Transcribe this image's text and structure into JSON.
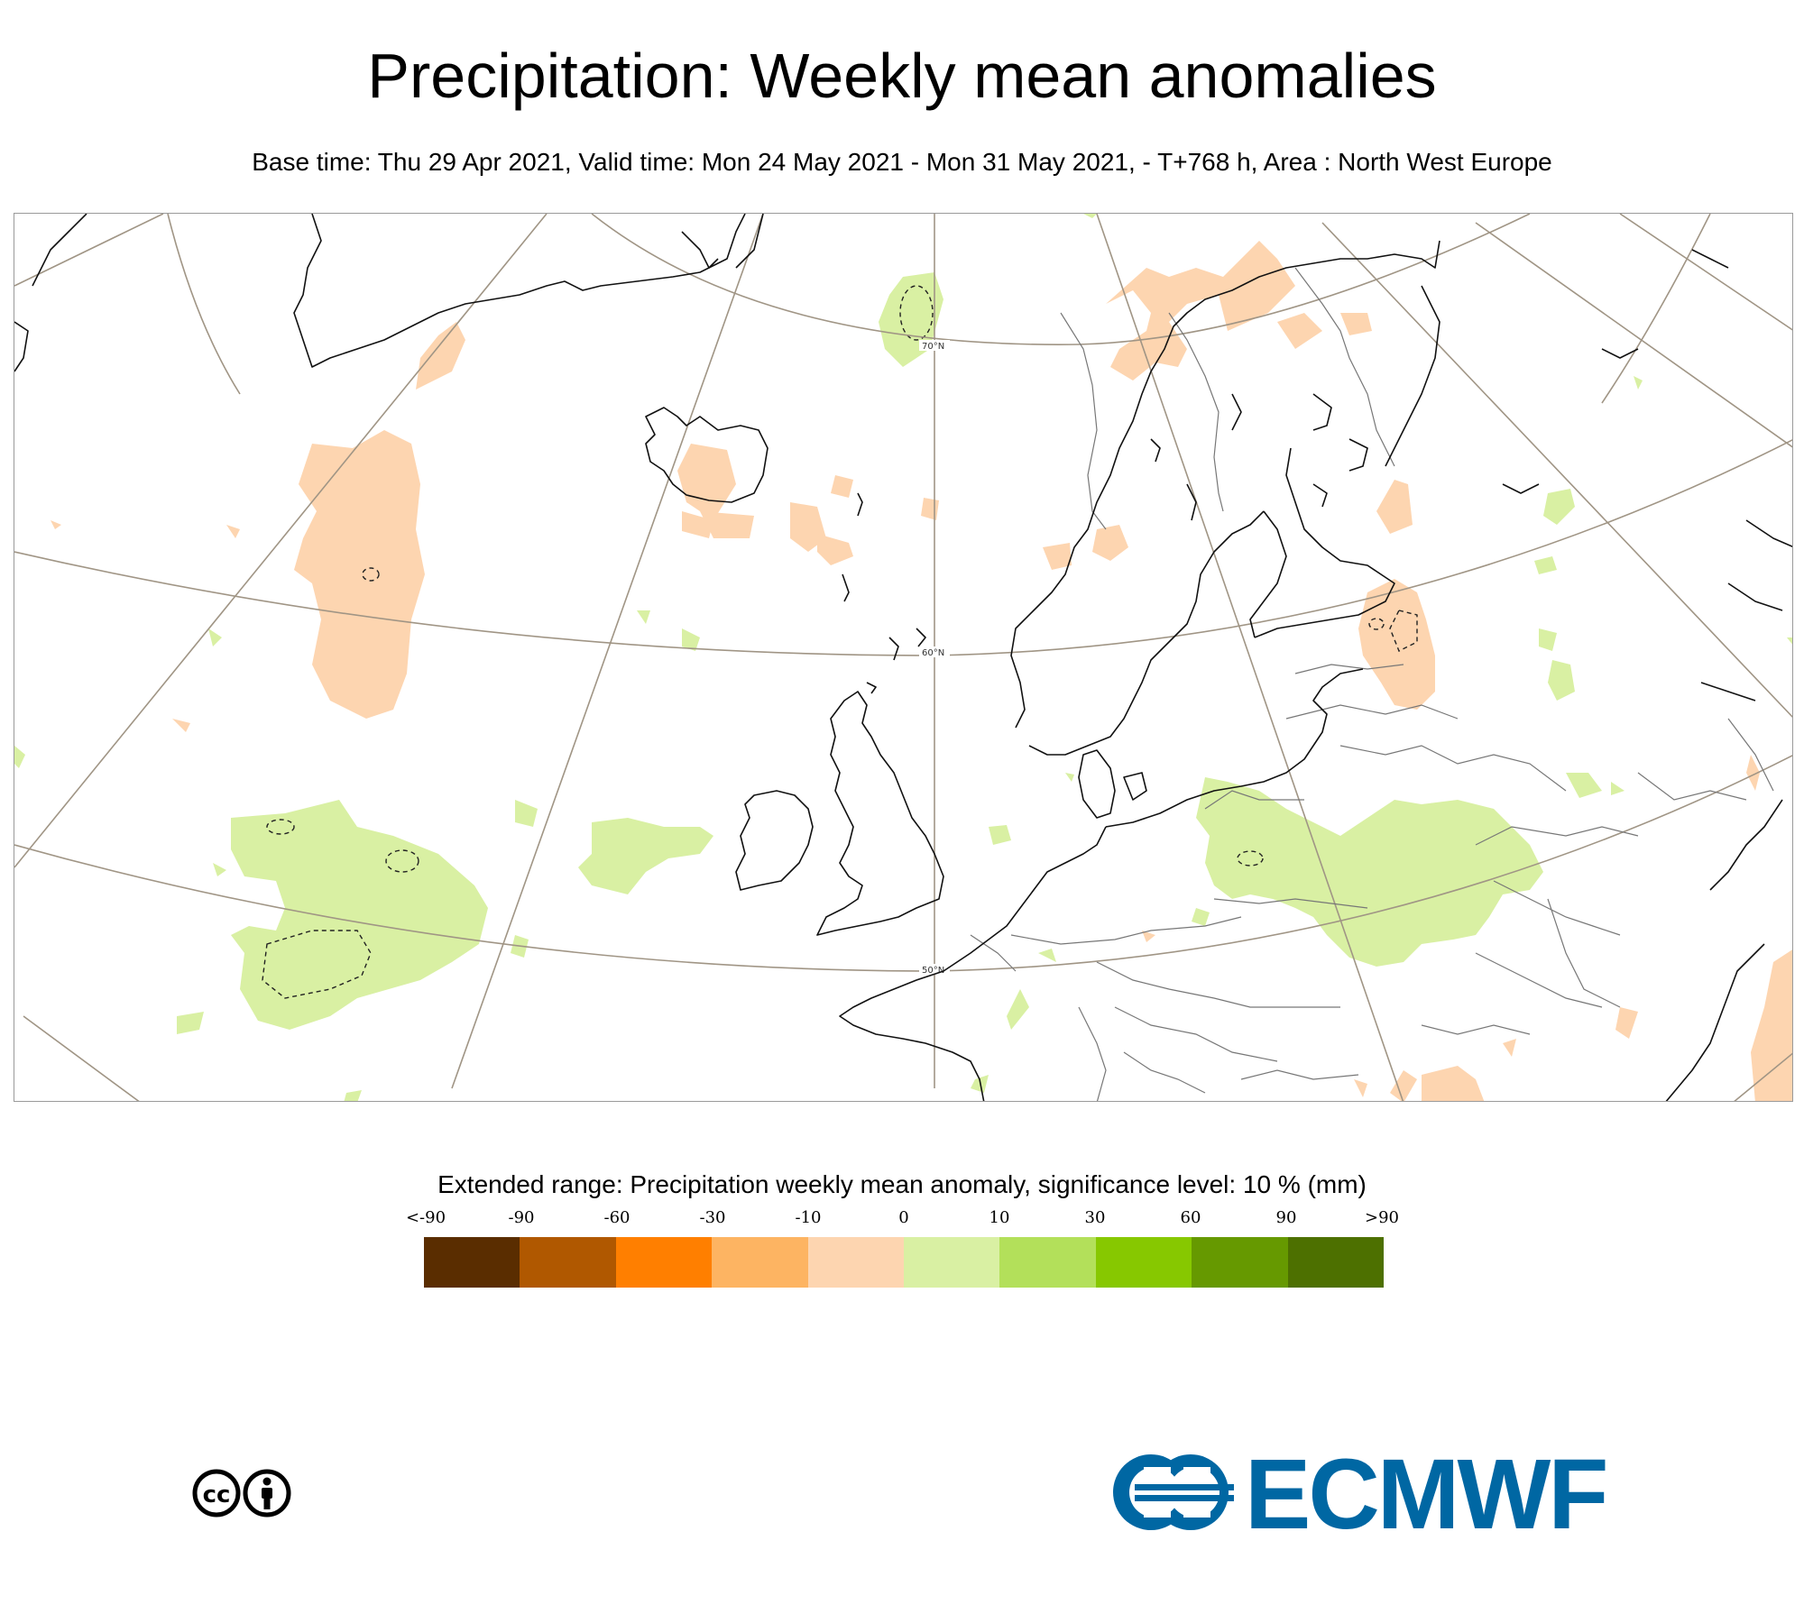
{
  "title": "Precipitation: Weekly mean anomalies",
  "subtitle": "Base time: Thu 29 Apr 2021, Valid time: Mon 24 May 2021 - Mon 31 May 2021, - T+768 h, Area : North West Europe",
  "map": {
    "lat_labels": [
      "70°N",
      "60°N",
      "50°N"
    ],
    "colors": {
      "dry_light": "#fdd5b0",
      "wet_light": "#d9f0a3",
      "grid": "#a09585",
      "coast": "#000000",
      "border": "#777777"
    }
  },
  "legend": {
    "title": "Extended range: Precipitation weekly mean anomaly, significance level: 10 % (mm)",
    "ticks": [
      "<-90",
      "-90",
      "-60",
      "-30",
      "-10",
      "0",
      "10",
      "30",
      "60",
      "90",
      ">90"
    ],
    "colors": [
      "#5a2d00",
      "#b05800",
      "#ff7f00",
      "#fdb462",
      "#fdd5b0",
      "#d9f0a3",
      "#b3e05a",
      "#87c800",
      "#669900",
      "#4d7000"
    ]
  },
  "logos": {
    "cc_icon": "cc-by-icon",
    "ecmwf_text": "ECMWF"
  }
}
